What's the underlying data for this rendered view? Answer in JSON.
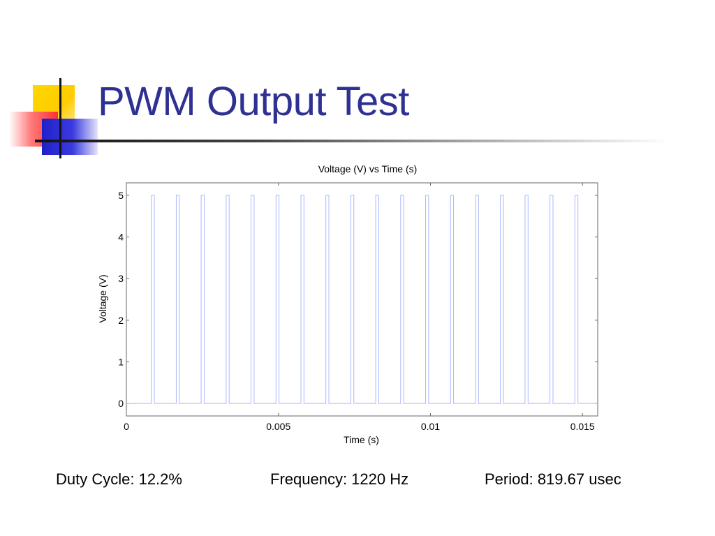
{
  "slide": {
    "title": "PWM Output Test"
  },
  "chart_data": {
    "type": "line",
    "title": "Voltage (V) vs Time (s)",
    "xlabel": "Time (s)",
    "ylabel": "Voltage (V)",
    "xlim": [
      0,
      0.0155
    ],
    "ylim": [
      -0.3,
      5.3
    ],
    "xticks": [
      0,
      0.005,
      0.01,
      0.015
    ],
    "xtick_labels": [
      "0",
      "0.005",
      "0.01",
      "0.015"
    ],
    "yticks": [
      0,
      1,
      2,
      3,
      4,
      5
    ],
    "ytick_labels": [
      "0",
      "1",
      "2",
      "3",
      "4",
      "5"
    ],
    "grid": false,
    "series": [
      {
        "color": "#aab8ff",
        "pulse_period": 0.00081967,
        "pulse_width": 0.0001,
        "pulse_starts": [
          0.00082,
          0.00164,
          0.00246,
          0.00328,
          0.0041,
          0.00492,
          0.00574,
          0.00656,
          0.00738,
          0.0082,
          0.00902,
          0.00984,
          0.01066,
          0.01148,
          0.0123,
          0.01311,
          0.01393,
          0.01475
        ],
        "high": 5,
        "low": 0
      }
    ]
  },
  "stats": {
    "duty_cycle": "Duty Cycle: 12.2%",
    "frequency": "Frequency: 1220 Hz",
    "period": "Period: 819.67 usec"
  }
}
